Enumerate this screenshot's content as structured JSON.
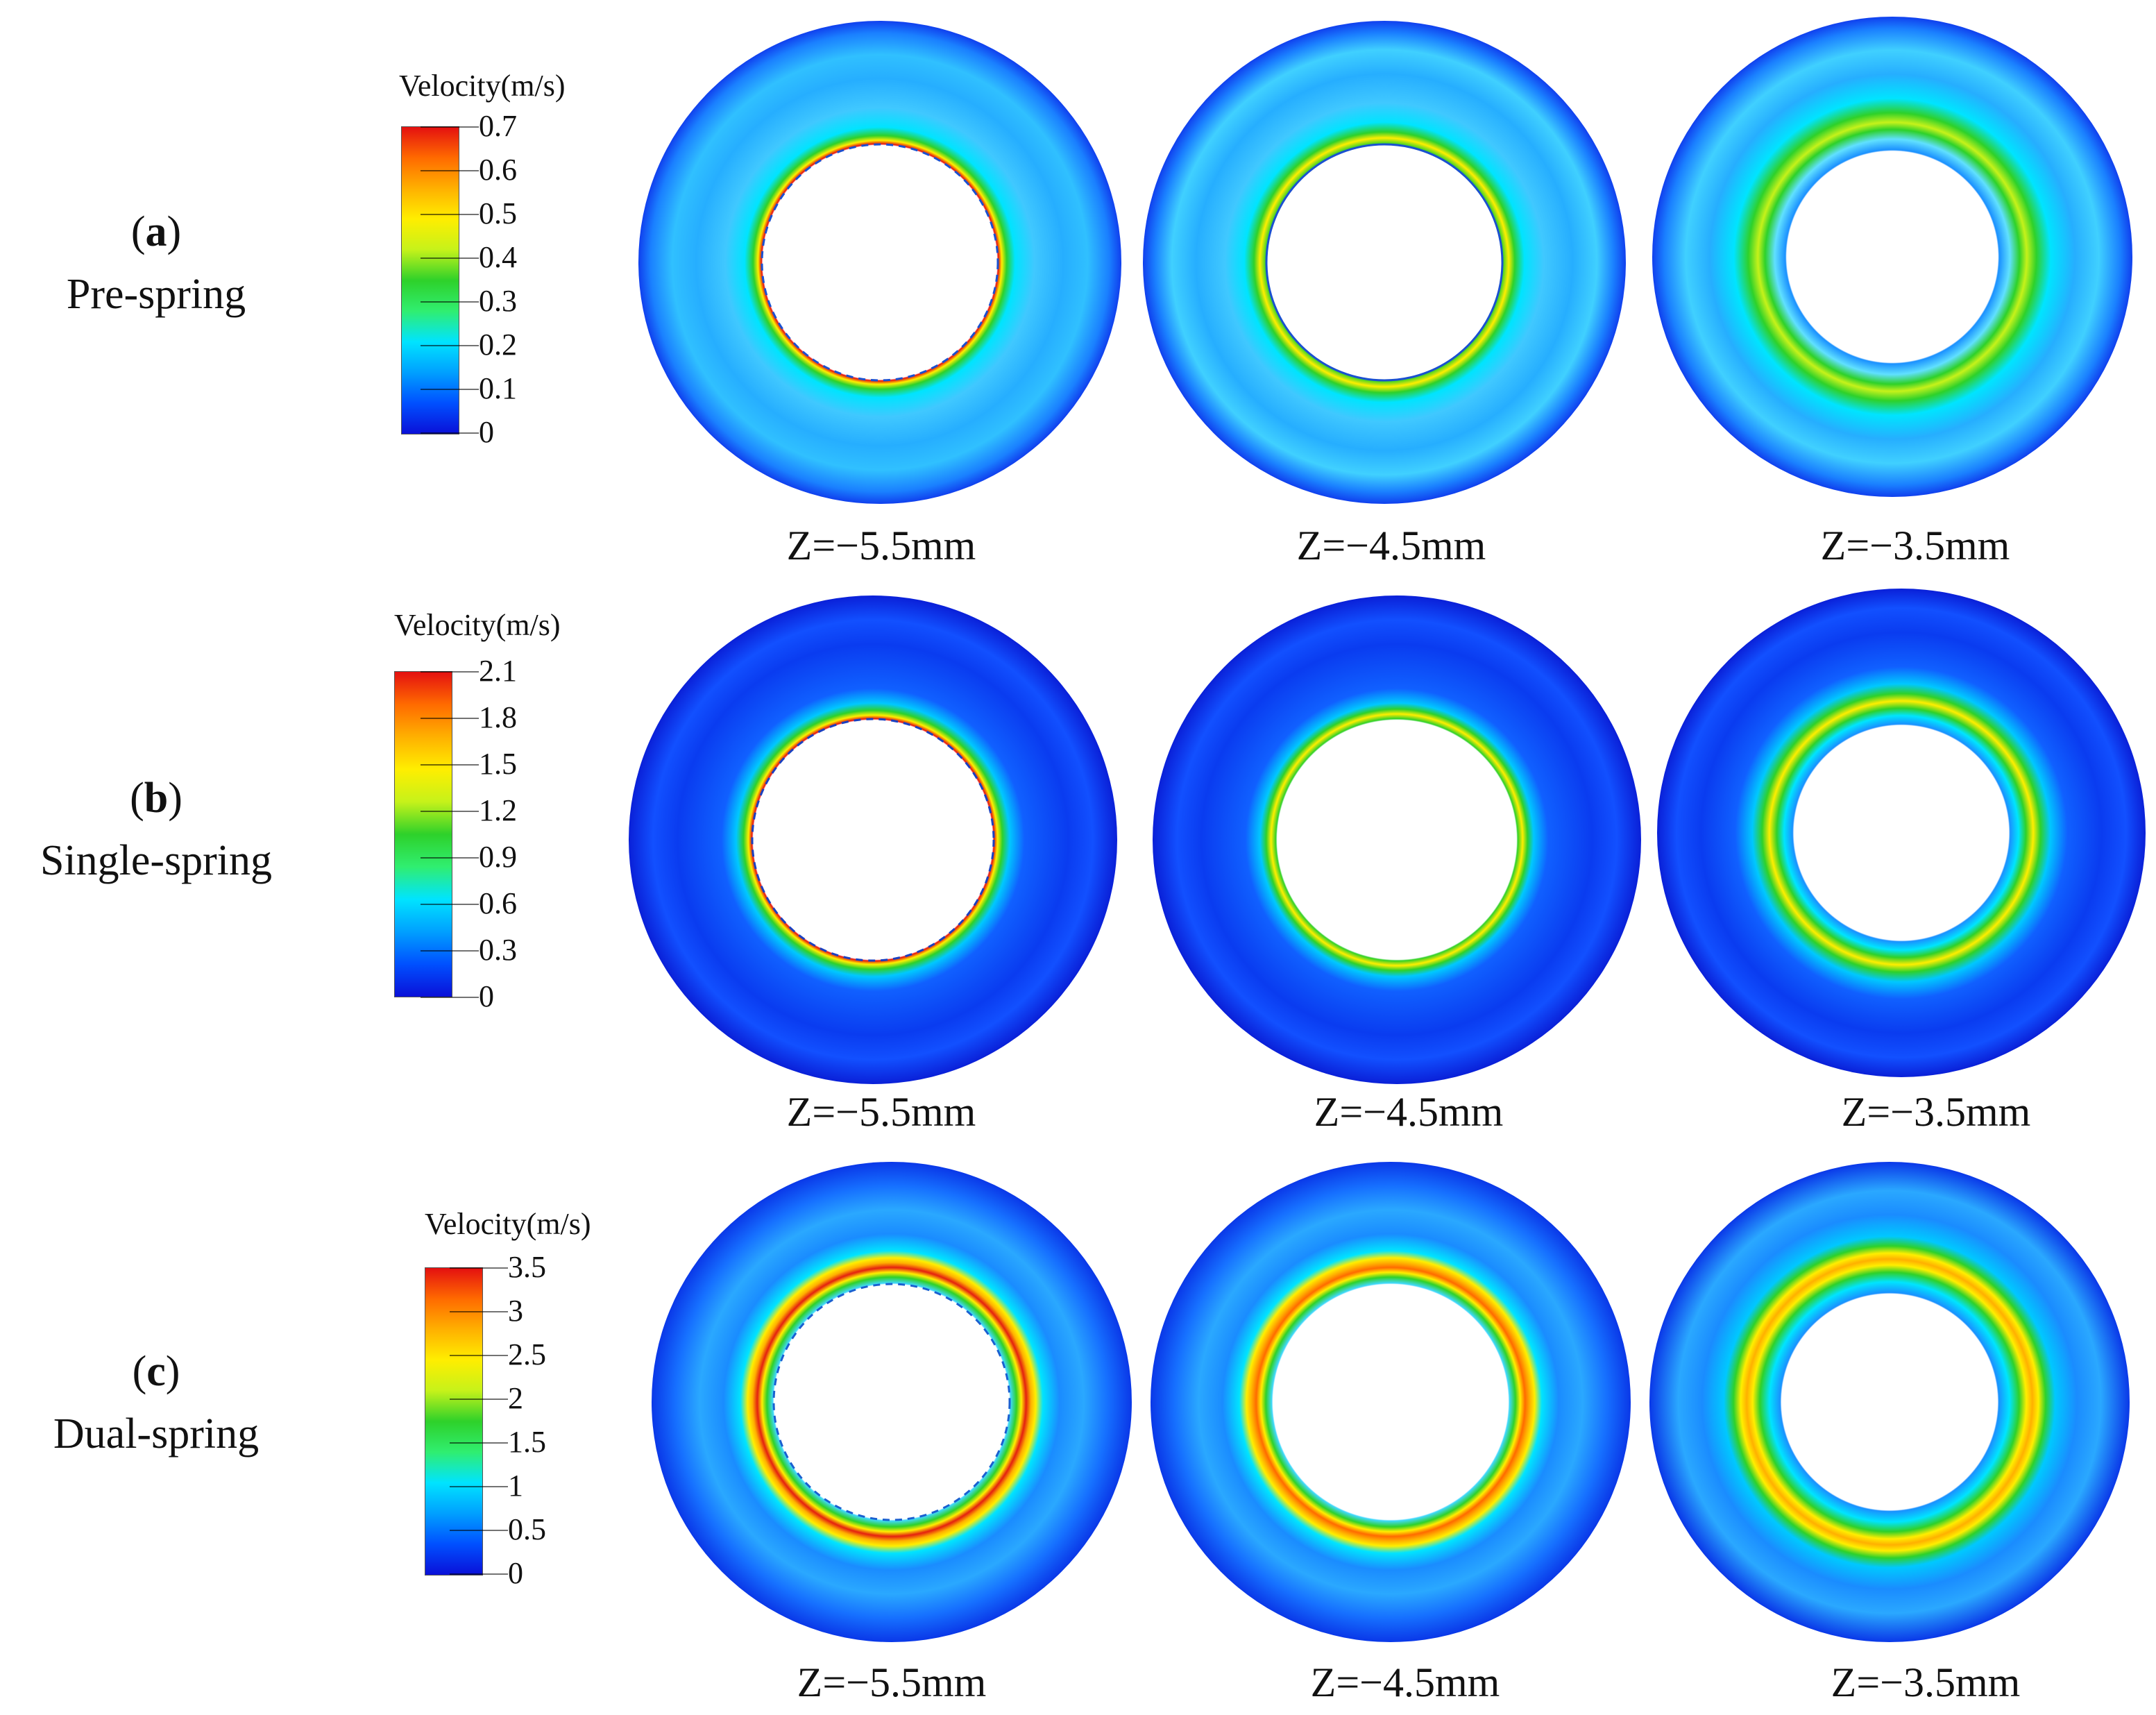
{
  "colorbar_gradient": [
    "#0a10d8",
    "#0050ff",
    "#00a0ff",
    "#00e4ff",
    "#30ee70",
    "#2ed12a",
    "#c6f21a",
    "#ffee00",
    "#ffb000",
    "#ff6a00",
    "#e41010"
  ],
  "colors": {
    "background": "#ffffff",
    "slow_flow": "#1040ee",
    "medium_flow": "#00b8ff",
    "fast_flow_ring": "#e42010",
    "hub": "#ffffff"
  },
  "rows": [
    {
      "id": "a",
      "letter": "a",
      "name": "Pre-spring",
      "legend_title": "Velocity(m/s)",
      "legend_ticks": [
        "0.7",
        "0.6",
        "0.5",
        "0.4",
        "0.3",
        "0.2",
        "0.1",
        "0"
      ],
      "planes": [
        "Z=−5.5mm",
        "Z=−4.5mm",
        "Z=−3.5mm"
      ]
    },
    {
      "id": "b",
      "letter": "b",
      "name": "Single-spring",
      "legend_title": "Velocity(m/s)",
      "legend_ticks": [
        "2.1",
        "1.8",
        "1.5",
        "1.2",
        "0.9",
        "0.6",
        "0.3",
        "0"
      ],
      "planes": [
        "Z=−5.5mm",
        "Z=−4.5mm",
        "Z=−3.5mm"
      ]
    },
    {
      "id": "c",
      "letter": "c",
      "name": "Dual-spring",
      "legend_title": "Velocity(m/s)",
      "legend_ticks": [
        "3.5",
        "3",
        "2.5",
        "2",
        "1.5",
        "1",
        "0.5",
        "0"
      ],
      "planes": [
        "Z=−5.5mm",
        "Z=−4.5mm",
        "Z=−3.5mm"
      ]
    }
  ]
}
